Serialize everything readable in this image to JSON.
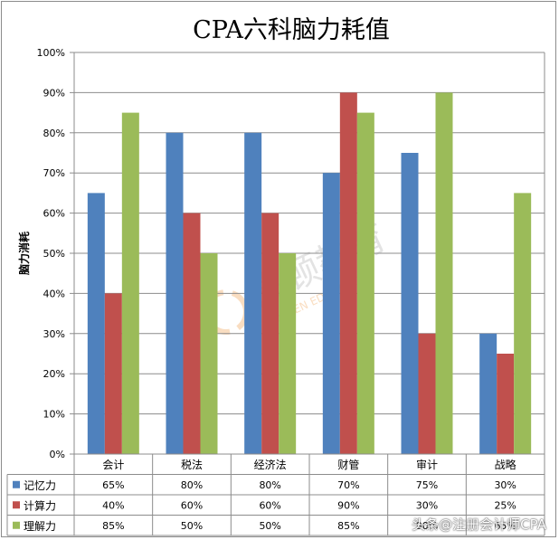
{
  "chart_data": {
    "type": "bar",
    "title": "CPA六科脑力耗值",
    "ylabel": "脑力消耗",
    "xlabel": "",
    "ylim": [
      0,
      100
    ],
    "y_ticks": [
      "0%",
      "10%",
      "20%",
      "30%",
      "40%",
      "50%",
      "60%",
      "70%",
      "80%",
      "90%",
      "100%"
    ],
    "grid": true,
    "legend": "data-table-left",
    "categories": [
      "会计",
      "税法",
      "经济法",
      "财管",
      "审计",
      "战略"
    ],
    "series": [
      {
        "name": "记忆力",
        "color": "#4f81bd",
        "values": [
          65,
          80,
          80,
          70,
          75,
          30
        ],
        "labels": [
          "65%",
          "80%",
          "80%",
          "70%",
          "75%",
          "30%"
        ]
      },
      {
        "name": "计算力",
        "color": "#c0504d",
        "values": [
          40,
          60,
          60,
          90,
          30,
          25
        ],
        "labels": [
          "40%",
          "60%",
          "60%",
          "90%",
          "30%",
          "25%"
        ]
      },
      {
        "name": "理解力",
        "color": "#9bbb59",
        "values": [
          85,
          50,
          50,
          85,
          90,
          65
        ],
        "labels": [
          "85%",
          "50%",
          "50%",
          "85%",
          "90%",
          "65%"
        ]
      }
    ]
  },
  "watermark": {
    "text": "高顿教育",
    "subtext": "GOLDEN EDUCATION",
    "icon": "golden-logo-icon"
  },
  "credit": "头条@注册会计师CPA"
}
